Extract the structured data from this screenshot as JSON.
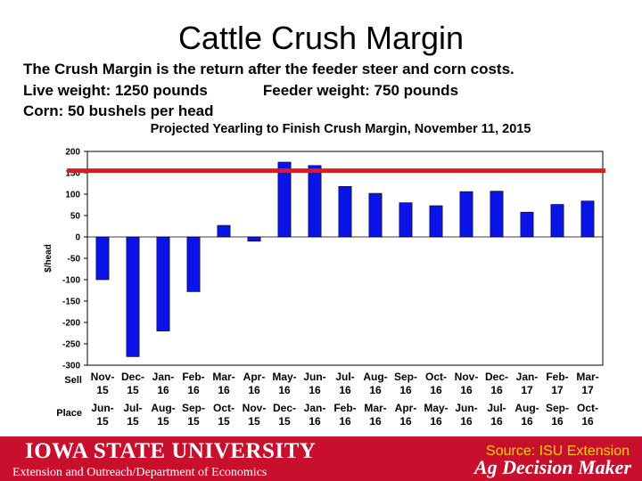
{
  "slide": {
    "title": "Cattle Crush Margin",
    "line1": "The Crush Margin is the return after the feeder steer and corn costs.",
    "line2a": "Live weight:  1250 pounds",
    "line2b": "Feeder weight:  750 pounds",
    "line3": "Corn:  50 bushels per head"
  },
  "footer": {
    "university": "IOWA STATE UNIVERSITY",
    "department": "Extension and Outreach/Department of Economics",
    "source": "Source: ISU Extension",
    "brand": "Ag Decision Maker"
  },
  "colors": {
    "bar": "#0a14e6",
    "reference_line": "#e0191b",
    "footer": "#c8102e",
    "source_text": "#ffd200"
  },
  "chart_data": {
    "type": "bar",
    "title": "Projected Yearling to Finish Crush Margin, November 11, 2015",
    "ylabel": "$/head",
    "ylim": [
      -300,
      200
    ],
    "yticks": [
      200,
      150,
      100,
      50,
      0,
      -50,
      -100,
      -150,
      -200,
      -250,
      -300
    ],
    "row_labels": {
      "sell": "Sell",
      "place": "Place"
    },
    "sell": [
      [
        "Nov-",
        "15"
      ],
      [
        "Dec-",
        "15"
      ],
      [
        "Jan-",
        "16"
      ],
      [
        "Feb-",
        "16"
      ],
      [
        "Mar-",
        "16"
      ],
      [
        "Apr-",
        "16"
      ],
      [
        "May-",
        "16"
      ],
      [
        "Jun-",
        "16"
      ],
      [
        "Jul-",
        "16"
      ],
      [
        "Aug-",
        "16"
      ],
      [
        "Sep-",
        "16"
      ],
      [
        "Oct-",
        "16"
      ],
      [
        "Nov-",
        "16"
      ],
      [
        "Dec-",
        "16"
      ],
      [
        "Jan-",
        "17"
      ],
      [
        "Feb-",
        "17"
      ],
      [
        "Mar-",
        "17"
      ]
    ],
    "place": [
      [
        "Jun-",
        "15"
      ],
      [
        "Jul-",
        "15"
      ],
      [
        "Aug-",
        "15"
      ],
      [
        "Sep-",
        "15"
      ],
      [
        "Oct-",
        "15"
      ],
      [
        "Nov-",
        "15"
      ],
      [
        "Dec-",
        "15"
      ],
      [
        "Jan-",
        "16"
      ],
      [
        "Feb-",
        "16"
      ],
      [
        "Mar-",
        "16"
      ],
      [
        "Apr-",
        "16"
      ],
      [
        "May-",
        "16"
      ],
      [
        "Jun-",
        "16"
      ],
      [
        "Jul-",
        "16"
      ],
      [
        "Aug-",
        "16"
      ],
      [
        "Sep-",
        "16"
      ],
      [
        "Oct-",
        "16"
      ]
    ],
    "values": [
      -100,
      -280,
      -220,
      -128,
      27,
      -10,
      175,
      167,
      118,
      102,
      80,
      73,
      106,
      107,
      58,
      76,
      84
    ],
    "reference_line": 155
  }
}
